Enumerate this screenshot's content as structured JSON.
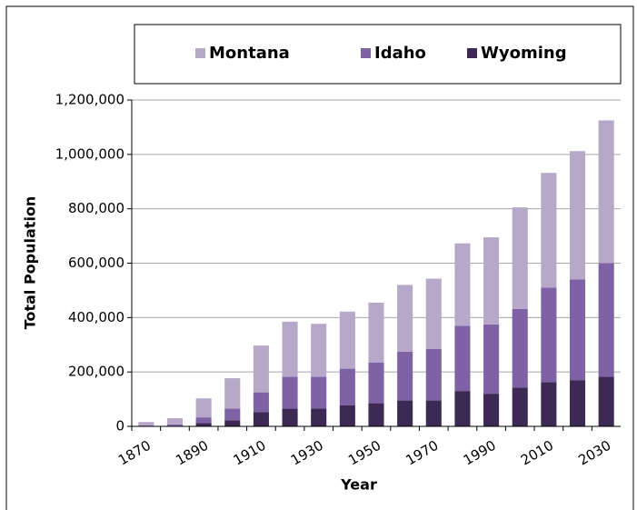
{
  "chart_data": {
    "type": "stacked_bar",
    "categories": [
      "1870",
      null,
      "1890",
      null,
      "1910",
      null,
      "1930",
      null,
      "1950",
      null,
      "1970",
      null,
      "1990",
      null,
      "2010",
      null,
      "2030"
    ],
    "series": [
      {
        "name": "Wyoming",
        "color": "#3c2a55",
        "values": [
          1000,
          2000,
          12000,
          22000,
          52000,
          65000,
          66000,
          78000,
          85000,
          95000,
          95000,
          130000,
          120000,
          143000,
          163000,
          170000,
          183000
        ]
      },
      {
        "name": "Idaho",
        "color": "#7f62a5",
        "values": [
          2000,
          5000,
          21000,
          43000,
          73000,
          117000,
          116000,
          134000,
          150000,
          180000,
          190000,
          240000,
          255000,
          289000,
          347000,
          370000,
          417000
        ]
      },
      {
        "name": "Montana",
        "color": "#b7a8c9",
        "values": [
          13000,
          23000,
          70000,
          112000,
          172000,
          203000,
          195000,
          210000,
          220000,
          245000,
          258000,
          303000,
          320000,
          373000,
          422000,
          472000,
          525000
        ]
      }
    ],
    "legend_order": [
      "Montana",
      "Idaho",
      "Wyoming"
    ],
    "xlabel": "Year",
    "ylabel": "Total Population",
    "ylim": [
      0,
      1200000
    ],
    "yticks": [
      0,
      {
        "value": 200000,
        "label": "200,000"
      },
      {
        "value": 400000,
        "label": "400,000"
      },
      {
        "value": 600000,
        "label": "600,000"
      },
      {
        "value": 800000,
        "label": "800,000"
      },
      {
        "value": 1000000,
        "label": "1,000,000"
      },
      {
        "value": 1200000,
        "label": "1,200,000"
      }
    ],
    "grid": true
  }
}
